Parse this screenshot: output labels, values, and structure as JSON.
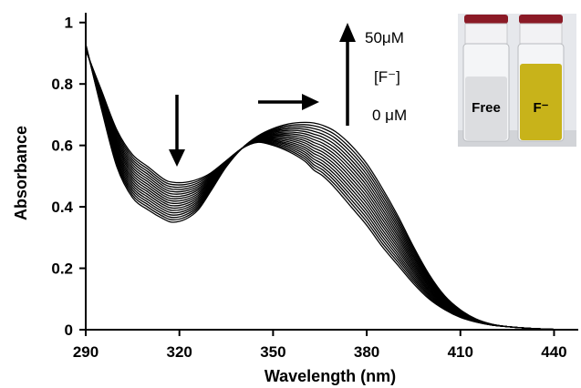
{
  "chart_data": {
    "type": "line",
    "title": "",
    "xlabel": "Wavelength (nm)",
    "ylabel": "Absorbance",
    "xlim": [
      290,
      446
    ],
    "ylim": [
      0,
      1.02
    ],
    "xticks": [
      290,
      320,
      350,
      380,
      410,
      440
    ],
    "yticks": [
      0,
      0.2,
      0.4,
      0.6,
      0.8,
      1
    ],
    "ytick_labels": [
      "0",
      "0.2",
      "0.4",
      "0.6",
      "0.8",
      "1"
    ],
    "grid": false,
    "legend": "none",
    "line_color": "#000000",
    "series_count": 18,
    "concentration_range_uM": [
      0,
      50
    ],
    "x": [
      290,
      295,
      300,
      305,
      310,
      315,
      318,
      322,
      326,
      330,
      335,
      340,
      345,
      350,
      355,
      360,
      363,
      366,
      370,
      375,
      380,
      385,
      390,
      395,
      400,
      405,
      410,
      415,
      420,
      425,
      430,
      435,
      440,
      446
    ],
    "series_start": {
      "values": [
        0.91,
        0.78,
        0.65,
        0.57,
        0.53,
        0.49,
        0.48,
        0.48,
        0.49,
        0.51,
        0.55,
        0.59,
        0.61,
        0.6,
        0.58,
        0.55,
        0.52,
        0.5,
        0.46,
        0.4,
        0.34,
        0.27,
        0.21,
        0.15,
        0.1,
        0.065,
        0.04,
        0.025,
        0.015,
        0.01,
        0.006,
        0.003,
        0.001,
        0
      ]
    },
    "series_end": {
      "values": [
        0.93,
        0.72,
        0.53,
        0.43,
        0.39,
        0.36,
        0.35,
        0.36,
        0.39,
        0.45,
        0.53,
        0.59,
        0.63,
        0.655,
        0.67,
        0.675,
        0.673,
        0.665,
        0.645,
        0.6,
        0.54,
        0.46,
        0.37,
        0.27,
        0.18,
        0.11,
        0.065,
        0.035,
        0.018,
        0.01,
        0.006,
        0.003,
        0.001,
        0
      ]
    },
    "annotations": {
      "conc_high": "50μM",
      "conc_label": "[F⁻]",
      "conc_low": "0 μM"
    }
  },
  "inset": {
    "vial_free_label": "Free",
    "vial_f_label": "F⁻",
    "cap_color": "#8b1a26",
    "free_solution_color": "#dcdde0",
    "f_solution_color": "#c8b31a"
  }
}
